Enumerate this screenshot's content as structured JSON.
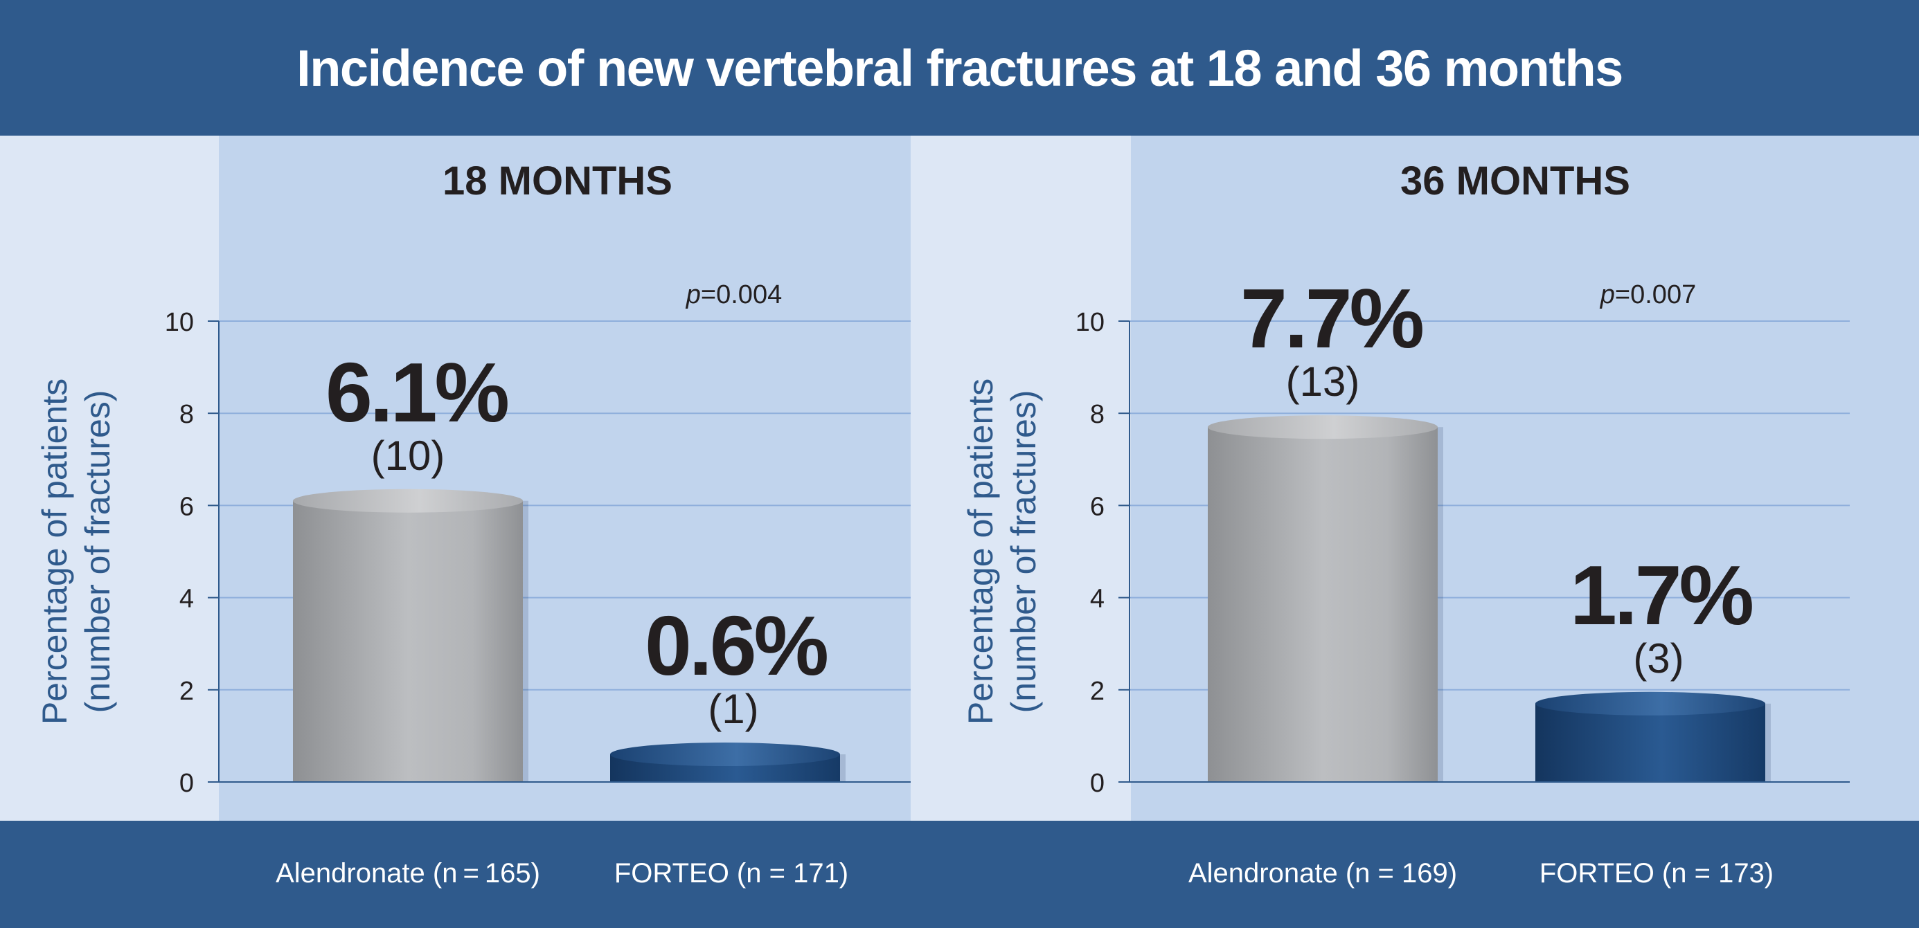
{
  "title": "Incidence of new vertebral fractures at 18 and 36 months",
  "colors": {
    "header_bg": "#2f5a8c",
    "panel_bg": "#c1d4ed",
    "outer_bg": "#dde7f5",
    "alendronate": "#a6a8ab",
    "forteo": "#1f477a",
    "axis_label": "#2f5a8c",
    "text": "#231f20"
  },
  "chart_data": [
    {
      "type": "bar",
      "title": "18 MONTHS",
      "ylabel": [
        "Percentage of patients",
        "(number of fractures)"
      ],
      "ylim": [
        0,
        10
      ],
      "yticks": [
        "0",
        "2",
        "4",
        "6",
        "8",
        "10"
      ],
      "grid": true,
      "annotation": {
        "prefix": "p",
        "text": "=0.004"
      },
      "categories": [
        "Alendronate (n = 165)",
        "FORTEO (n = 171)"
      ],
      "values": [
        6.1,
        0.6
      ],
      "value_labels": [
        "6.1%",
        "0.6%"
      ],
      "count_labels": [
        "(10)",
        "(1)"
      ]
    },
    {
      "type": "bar",
      "title": "36 MONTHS",
      "ylabel": [
        "Percentage of patients",
        "(number of fractures)"
      ],
      "ylim": [
        0,
        10
      ],
      "yticks": [
        "0",
        "2",
        "4",
        "6",
        "8",
        "10"
      ],
      "grid": true,
      "annotation": {
        "prefix": "p",
        "text": "=0.007"
      },
      "categories": [
        "Alendronate (n = 169)",
        "FORTEO (n = 173)"
      ],
      "values": [
        7.7,
        1.7
      ],
      "value_labels": [
        "7.7%",
        "1.7%"
      ],
      "count_labels": [
        "(13)",
        "(3)"
      ]
    }
  ]
}
